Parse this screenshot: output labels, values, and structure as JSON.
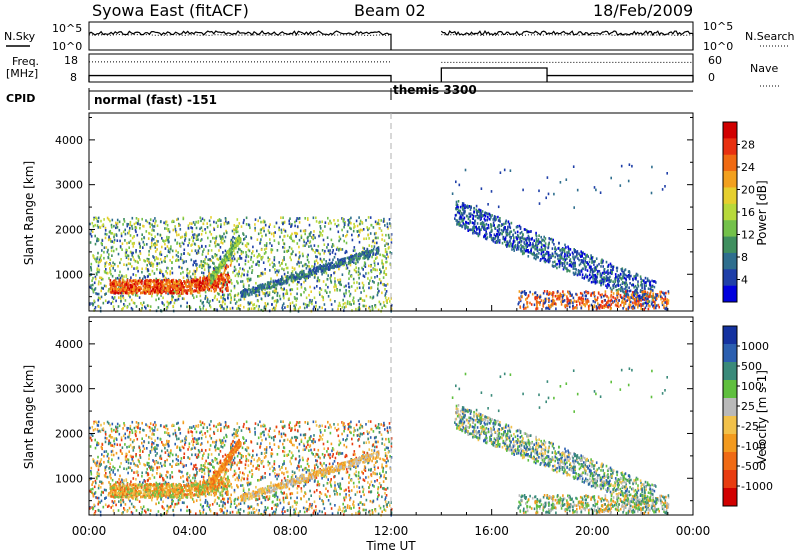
{
  "header": {
    "station": "Syowa East (fitACF)",
    "beam": "Beam 02",
    "date": "18/Feb/2009"
  },
  "panels": {
    "nsky_label": "N.Sky",
    "nsearch_label": "N.Search",
    "freq_label_1": "Freq.",
    "freq_label_2": "[MHz]",
    "nave_label": "Nave",
    "cpid_label": "CPID"
  },
  "cpid_modes": [
    {
      "label": "normal (fast) -151",
      "start_hour": 0,
      "end_hour": 12
    },
    {
      "label": "themis 3300",
      "start_hour": 12,
      "end_hour": 24
    }
  ],
  "chart_data": [
    {
      "type": "line",
      "name": "noise",
      "left_ticks": [
        "10^5",
        "10^0"
      ],
      "right_ticks": [
        "10^5",
        "10^0"
      ],
      "segments_hours": [
        [
          0,
          12
        ],
        [
          14,
          24
        ]
      ]
    },
    {
      "type": "line",
      "name": "frequency_nave",
      "left_ticks": [
        "18",
        "8"
      ],
      "right_ticks": [
        "60",
        "0"
      ],
      "freq_segments": [
        {
          "start": 0,
          "end": 12,
          "level": 10.3
        },
        {
          "start": 14,
          "end": 18.2,
          "level": 13.0
        },
        {
          "start": 18.2,
          "end": 24,
          "level": 10.3
        }
      ],
      "nave_segments": [
        {
          "start": 0,
          "end": 12,
          "level": 43
        },
        {
          "start": 14,
          "end": 24,
          "level": 42
        }
      ]
    },
    {
      "type": "heatmap",
      "name": "power",
      "ylabel": "Slant Range [km]",
      "ylim": [
        180,
        4600
      ],
      "yticks": [
        1000,
        2000,
        3000,
        4000
      ],
      "xlim": [
        0,
        24
      ],
      "colorbar": {
        "label": "Power [dB]",
        "ticks": [
          "28",
          "24",
          "20",
          "16",
          "12",
          "8",
          "4"
        ],
        "colors": [
          "#0000dd",
          "#1f3fa8",
          "#2e6e8e",
          "#3f8f5f",
          "#73c14a",
          "#b7d93a",
          "#e6cf2e",
          "#f2a01e",
          "#f06a12",
          "#e83010",
          "#d10000"
        ]
      }
    },
    {
      "type": "heatmap",
      "name": "velocity",
      "ylabel": "Slant Range [km]",
      "ylim": [
        180,
        4600
      ],
      "yticks": [
        1000,
        2000,
        3000,
        4000
      ],
      "xlim": [
        0,
        24
      ],
      "colorbar": {
        "label": "Velocity [m s-1]",
        "ticks": [
          "1000",
          "500",
          "100",
          "25",
          "-25",
          "-100",
          "-500",
          "-1000"
        ],
        "colors": [
          "#1432a0",
          "#2b5fb0",
          "#3a8a7a",
          "#5fbf3e",
          "#b9b9b9",
          "#f2c14a",
          "#f39a1e",
          "#f06a14",
          "#e83c10",
          "#d10000"
        ]
      }
    }
  ],
  "time_axis": {
    "ticks": [
      "00:00",
      "04:00",
      "08:00",
      "12:00",
      "16:00",
      "20:00",
      "00:00"
    ],
    "label": "Time UT"
  },
  "colors": {
    "frame": "#000000",
    "divider": "#b0b0b0"
  }
}
